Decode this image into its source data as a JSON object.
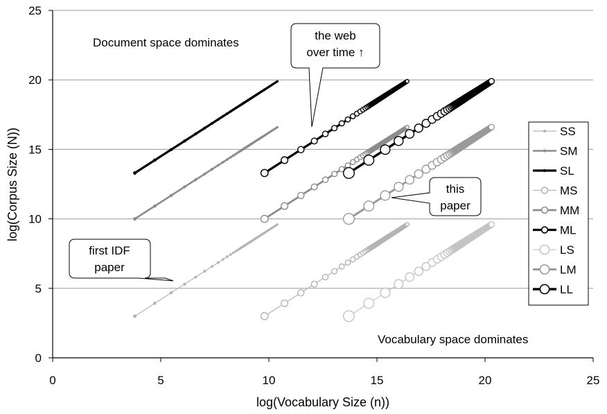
{
  "chart_data": {
    "type": "line",
    "title": "",
    "xlabel": "log(Vocabulary Size (n))",
    "ylabel": "log(Corpus Size (N))",
    "xlim": [
      0,
      25
    ],
    "ylim": [
      0,
      25
    ],
    "x_ticks": [
      "0",
      "5",
      "10",
      "15",
      "20",
      "25"
    ],
    "y_ticks": [
      "0",
      "5",
      "10",
      "15",
      "20",
      "25"
    ],
    "grid": "horizontal",
    "legend_position": "right",
    "series": [
      {
        "name": "SS",
        "x_range": [
          3.8,
          10.4
        ],
        "y_range": [
          3.0,
          9.6
        ],
        "color": "#b4b4b4",
        "marker": "small-filled"
      },
      {
        "name": "SM",
        "x_range": [
          3.8,
          10.4
        ],
        "y_range": [
          10.0,
          16.6
        ],
        "color": "#8c8c8c",
        "marker": "small-filled"
      },
      {
        "name": "SL",
        "x_range": [
          3.8,
          10.4
        ],
        "y_range": [
          13.3,
          19.9
        ],
        "color": "#000000",
        "marker": "small-filled"
      },
      {
        "name": "MS",
        "x_range": [
          9.8,
          16.4
        ],
        "y_range": [
          3.0,
          9.6
        ],
        "color": "#b4b4b4",
        "marker": "medium-open"
      },
      {
        "name": "MM",
        "x_range": [
          9.8,
          16.4
        ],
        "y_range": [
          10.0,
          16.6
        ],
        "color": "#8c8c8c",
        "marker": "medium-open"
      },
      {
        "name": "ML",
        "x_range": [
          9.8,
          16.4
        ],
        "y_range": [
          13.3,
          19.9
        ],
        "color": "#000000",
        "marker": "medium-open"
      },
      {
        "name": "LS",
        "x_range": [
          13.7,
          20.3
        ],
        "y_range": [
          3.0,
          9.6
        ],
        "color": "#c4c4c4",
        "marker": "large-open"
      },
      {
        "name": "LM",
        "x_range": [
          13.7,
          20.3
        ],
        "y_range": [
          10.0,
          16.6
        ],
        "color": "#9a9a9a",
        "marker": "large-open"
      },
      {
        "name": "LL",
        "x_range": [
          13.7,
          20.3
        ],
        "y_range": [
          13.3,
          19.9
        ],
        "color": "#000000",
        "marker": "large-open"
      }
    ],
    "annotations": {
      "top_left": "Document space dominates",
      "bottom_right": "Vocabulary space dominates",
      "callouts": [
        {
          "lines": [
            "the web",
            "over time ↑"
          ],
          "target": [
            12.0,
            16.6
          ]
        },
        {
          "lines": [
            "this",
            "paper"
          ],
          "target": [
            15.5,
            11.0
          ]
        },
        {
          "lines": [
            "first IDF",
            "paper"
          ],
          "target": [
            5.5,
            5.6
          ]
        }
      ]
    }
  }
}
